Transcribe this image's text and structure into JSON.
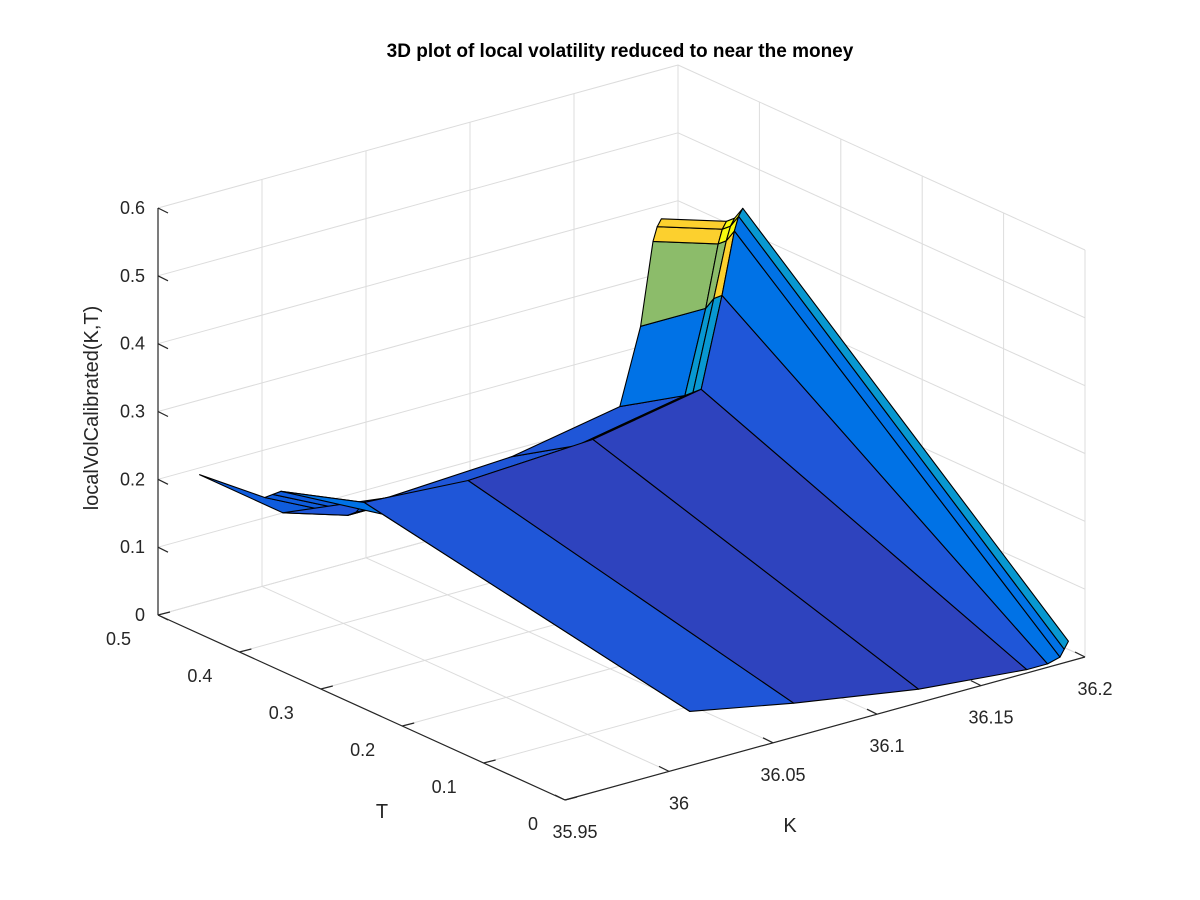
{
  "chart_data": {
    "type": "surface",
    "title": "3D plot of local volatility reduced to near the money",
    "xlabel": "K",
    "ylabel": "T",
    "zlabel": "localVolCalibrated(K,T)",
    "xlim": [
      35.95,
      36.2
    ],
    "ylim": [
      0,
      0.5
    ],
    "zlim": [
      0,
      0.6
    ],
    "x_ticks": [
      "35.95",
      "36",
      "36.05",
      "36.1",
      "36.15",
      "36.2"
    ],
    "y_ticks": [
      "0",
      "0.1",
      "0.2",
      "0.3",
      "0.4",
      "0.5"
    ],
    "z_ticks": [
      "0",
      "0.1",
      "0.2",
      "0.3",
      "0.4",
      "0.5",
      "0.6"
    ],
    "grid": true,
    "colormap": "parula",
    "colors": {
      "c1": "#352a87",
      "c2": "#2e43be",
      "c3": "#1f56d8",
      "c4": "#0f5cdd",
      "c5": "#0072e6",
      "c6": "#0898d1",
      "c7": "#58bc8b",
      "c8": "#8cbc6a",
      "c9": "#fcd02e",
      "c10": "#f9fb0e"
    },
    "surface": {
      "K": [
        35.97,
        36.01,
        36.06,
        36.12,
        36.172,
        36.182,
        36.188,
        36.19,
        36.192
      ],
      "T": [
        0.0,
        0.4,
        0.41,
        0.42,
        0.5
      ],
      "Z": [
        [
          0.33,
          0.08,
          0.05,
          0.02,
          0.005,
          0.005,
          0.01,
          0.02,
          0.03
        ],
        [
          0.22,
          0.17,
          0.16,
          0.17,
          0.2,
          0.33,
          0.42,
          0.44,
          0.45
        ],
        [
          0.21,
          0.15,
          0.145,
          0.16,
          0.19,
          0.32,
          0.4,
          0.42,
          0.43
        ],
        [
          0.2,
          0.14,
          0.14,
          0.15,
          0.18,
          0.3,
          0.39,
          0.41,
          0.42
        ],
        [
          0.19,
          0.1,
          0.08,
          0.09,
          0.12,
          0.23,
          0.35,
          0.37,
          0.38
        ]
      ]
    }
  }
}
